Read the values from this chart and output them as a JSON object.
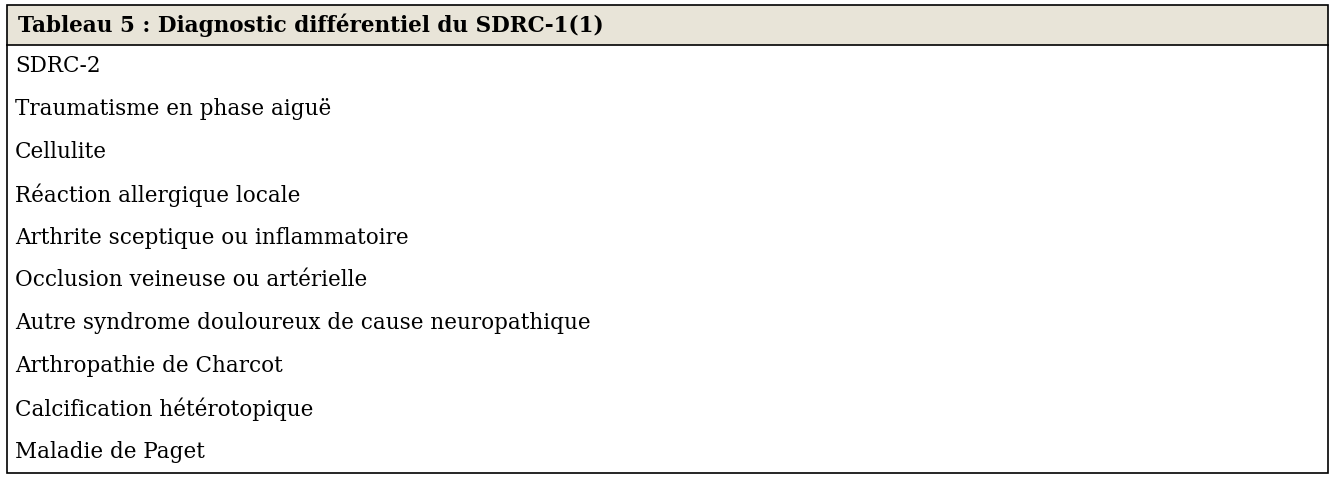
{
  "title": "Tableau 5 : Diagnostic différentiel du SDRC-1(1)",
  "rows": [
    "SDRC-2",
    "Traumatisme en phase aiguë",
    "Cellulite",
    "Réaction allergique locale",
    "Arthrite sceptique ou inflammatoire",
    "Occlusion veineuse ou artérielle",
    "Autre syndrome douloureux de cause neuropathique",
    "Arthropathie de Charcot",
    "Calcification hétérotopique",
    "Maladie de Paget"
  ],
  "header_bg": "#e8e4d8",
  "body_bg": "#ffffff",
  "border_color": "#000000",
  "header_fontsize": 15.5,
  "body_fontsize": 15.5,
  "text_color": "#000000",
  "fig_width": 13.35,
  "fig_height": 4.8
}
